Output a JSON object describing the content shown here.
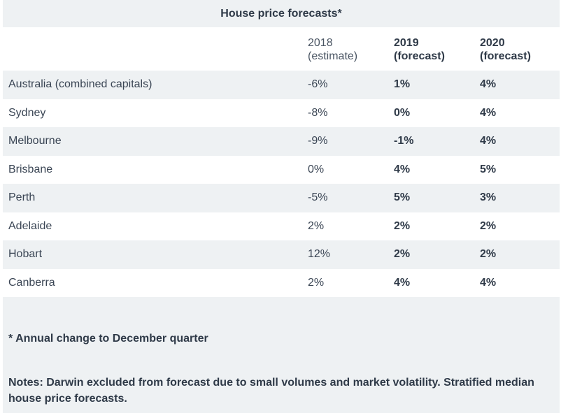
{
  "title": "House price forecasts*",
  "headers": {
    "col2018_line1": "2018",
    "col2018_line2": "(estimate)",
    "col2019_line1": "2019",
    "col2019_line2": "(forecast)",
    "col2020_line1": "2020",
    "col2020_line2": "(forecast)"
  },
  "rows": [
    {
      "city": "Australia (combined capitals)",
      "y2018": "-6%",
      "y2019": "1%",
      "y2020": "4%"
    },
    {
      "city": "Sydney",
      "y2018": "-8%",
      "y2019": "0%",
      "y2020": "4%"
    },
    {
      "city": "Melbourne",
      "y2018": "-9%",
      "y2019": "-1%",
      "y2020": "4%"
    },
    {
      "city": "Brisbane",
      "y2018": "0%",
      "y2019": "4%",
      "y2020": "5%"
    },
    {
      "city": "Perth",
      "y2018": "-5%",
      "y2019": "5%",
      "y2020": "3%"
    },
    {
      "city": "Adelaide",
      "y2018": "2%",
      "y2019": "2%",
      "y2020": "2%"
    },
    {
      "city": "Hobart",
      "y2018": "12%",
      "y2019": "2%",
      "y2020": "2%"
    },
    {
      "city": "Canberra",
      "y2018": "2%",
      "y2019": "4%",
      "y2020": "4%"
    }
  ],
  "footnote": "* Annual change to December quarter",
  "notes": "Notes: Darwin excluded from forecast due to small volumes and market volatility. Stratified median house price forecasts."
}
